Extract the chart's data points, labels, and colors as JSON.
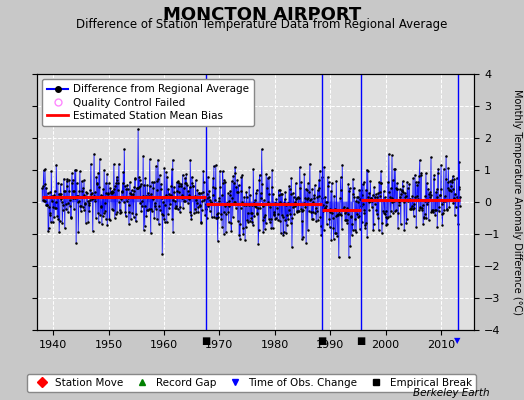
{
  "title": "MONCTON AIRPORT",
  "subtitle": "Difference of Station Temperature Data from Regional Average",
  "ylabel_right": "Monthly Temperature Anomaly Difference (°C)",
  "ylim": [
    -4,
    4
  ],
  "xlim": [
    1937,
    2016
  ],
  "xticks": [
    1940,
    1950,
    1960,
    1970,
    1980,
    1990,
    2000,
    2010
  ],
  "yticks": [
    -4,
    -3,
    -2,
    -1,
    0,
    1,
    2,
    3,
    4
  ],
  "background_color": "#c8c8c8",
  "plot_background_color": "#e0e0e0",
  "grid_color": "#ffffff",
  "data_line_color": "#0000ff",
  "data_marker_color": "#000000",
  "bias_line_color": "#ff0000",
  "vertical_line_color": "#0000ff",
  "seed": 42,
  "start_year": 1938,
  "end_year": 2013.5,
  "n_months": 912,
  "empirical_breaks": [
    1967.5,
    1988.5,
    1995.5
  ],
  "obs_change_year": 2013.0,
  "bias_segments": [
    {
      "x_start": 1938,
      "x_end": 1967.5,
      "bias": 0.15
    },
    {
      "x_start": 1967.5,
      "x_end": 1988.5,
      "bias": -0.05
    },
    {
      "x_start": 1988.5,
      "x_end": 1995.5,
      "bias": -0.25
    },
    {
      "x_start": 1995.5,
      "x_end": 2013.5,
      "bias": 0.05
    }
  ],
  "marker_positions": {
    "empirical_breaks": [
      1967.5,
      1988.5,
      1995.5
    ],
    "obs_change": [
      2013.0
    ]
  },
  "footer_text": "Berkeley Earth",
  "title_fontsize": 13,
  "subtitle_fontsize": 8.5,
  "legend_fontsize": 7.5,
  "tick_fontsize": 8,
  "ylabel_fontsize": 7,
  "footer_fontsize": 7.5
}
